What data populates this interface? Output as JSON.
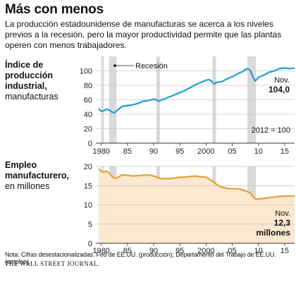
{
  "header": {
    "title": "Más con menos",
    "subtitle": "La producción estadounidense de manufacturas se acerca a los niveles previos a la recesión, pero la mayor productividad permite que las plantas operen con menos trabajadores."
  },
  "panels": {
    "top": {
      "label_bold": "Índice de producción industrial,",
      "label_rest": "manufacturas"
    },
    "bottom": {
      "label_bold": "Empleo manufacturero,",
      "label_rest": "en millones"
    }
  },
  "annotations": {
    "recession": "Recesión",
    "base": "2012 = 100",
    "top_month": "Nov.",
    "top_value": "104,0",
    "bottom_month": "Nov.",
    "bottom_value": "12,3",
    "bottom_unit": "millones"
  },
  "footer": {
    "note": "Nota: Cifras desestacionalizadas. Fed de EE.UU. (producción); Departamento del Trabajo de EE.UU. (empleo).",
    "source": "THE WALL STREET JOURNAL."
  },
  "colors": {
    "production": "#2a9fd8",
    "employment": "#e3a33e",
    "employment_fill": "#fbe8cf",
    "recession": "#d9d9d9",
    "grid": "#c8c8c8"
  },
  "recessions": [
    [
      1980.0,
      1980.5
    ],
    [
      1981.5,
      1982.9
    ],
    [
      1990.5,
      1991.2
    ],
    [
      2001.2,
      2001.9
    ],
    [
      2007.9,
      2009.5
    ]
  ],
  "chart_data": [
    {
      "type": "line",
      "title": "Índice de producción industrial, manufacturas",
      "x_range": [
        1979.5,
        2016.9
      ],
      "ylim": [
        0,
        120
      ],
      "yticks": [
        0,
        20,
        40,
        60,
        80,
        100
      ],
      "xticks": [
        "1980",
        "85",
        "90",
        "95",
        "2000",
        "05",
        "10",
        "15"
      ],
      "xtick_years": [
        1980,
        1985,
        1990,
        1995,
        2000,
        2005,
        2010,
        2015
      ],
      "series": [
        {
          "x": [
            1979.5,
            1980.0,
            1980.5,
            1981.0,
            1981.5,
            1982.0,
            1982.5,
            1983.0,
            1983.5,
            1984.0,
            1985.0,
            1986.0,
            1987.0,
            1988.0,
            1989.0,
            1990.0,
            1990.5,
            1991.0,
            1991.5,
            1992.0,
            1993.0,
            1994.0,
            1995.0,
            1996.0,
            1997.0,
            1998.0,
            1999.0,
            2000.0,
            2000.5,
            2001.0,
            2001.5,
            2002.0,
            2003.0,
            2004.0,
            2005.0,
            2006.0,
            2007.0,
            2007.5,
            2008.0,
            2008.5,
            2009.0,
            2009.4,
            2010.0,
            2011.0,
            2012.0,
            2013.0,
            2014.0,
            2015.0,
            2016.0,
            2016.9
          ],
          "y": [
            48,
            44,
            45,
            47,
            46,
            43,
            42,
            45,
            48,
            51,
            52,
            53,
            55,
            58,
            59,
            61,
            60,
            58,
            60,
            61,
            64,
            67,
            70,
            73,
            77,
            81,
            84,
            87,
            88,
            86,
            82,
            84,
            85,
            89,
            92,
            96,
            99,
            102,
            103,
            100,
            90,
            86,
            91,
            94,
            98,
            100,
            103,
            104,
            103,
            104
          ]
        }
      ]
    },
    {
      "type": "area",
      "title": "Empleo manufacturero, en millones",
      "x_range": [
        1979.5,
        2016.9
      ],
      "ylim": [
        0,
        20
      ],
      "yticks": [
        0,
        5,
        10,
        15,
        20
      ],
      "xticks": [
        "1980",
        "85",
        "90",
        "95",
        "2000",
        "05",
        "10",
        "15"
      ],
      "xtick_years": [
        1980,
        1985,
        1990,
        1995,
        2000,
        2005,
        2010,
        2015
      ],
      "series": [
        {
          "x": [
            1979.5,
            1980.0,
            1980.5,
            1981.0,
            1981.5,
            1982.0,
            1982.5,
            1983.0,
            1984.0,
            1985.0,
            1986.0,
            1987.0,
            1988.0,
            1989.0,
            1990.0,
            1991.0,
            1991.5,
            1992.0,
            1993.0,
            1994.0,
            1995.0,
            1996.0,
            1997.0,
            1998.0,
            1999.0,
            2000.0,
            2001.0,
            2001.5,
            2002.0,
            2003.0,
            2004.0,
            2005.0,
            2006.0,
            2007.0,
            2008.0,
            2008.5,
            2009.0,
            2009.5,
            2010.0,
            2011.0,
            2012.0,
            2013.0,
            2014.0,
            2015.0,
            2016.0,
            2016.9
          ],
          "y": [
            19.4,
            18.7,
            18.5,
            18.8,
            18.3,
            17.4,
            16.9,
            17.0,
            17.8,
            17.7,
            17.5,
            17.6,
            17.7,
            17.8,
            17.5,
            17.0,
            16.8,
            16.8,
            16.8,
            17.0,
            17.2,
            17.2,
            17.4,
            17.5,
            17.3,
            17.2,
            16.4,
            15.9,
            15.3,
            14.6,
            14.3,
            14.2,
            14.2,
            13.9,
            13.4,
            13.0,
            12.0,
            11.5,
            11.5,
            11.7,
            11.9,
            12.0,
            12.2,
            12.3,
            12.3,
            12.3
          ]
        }
      ]
    }
  ]
}
